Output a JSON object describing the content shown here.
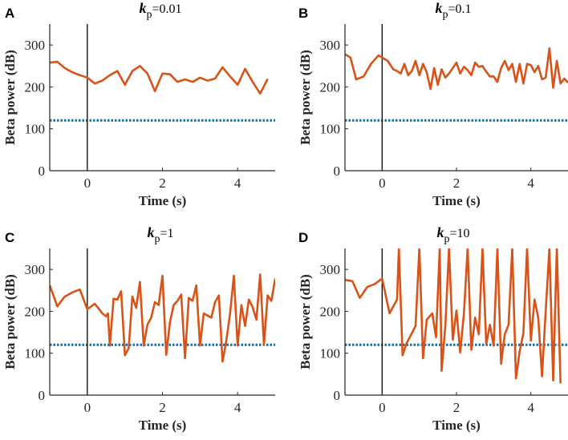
{
  "figure": {
    "colors": {
      "beta_line": "#D95319",
      "threshold_line": "#0072BD",
      "stim_line": "#000000",
      "axis": "#262626"
    }
  },
  "chart_data": [
    {
      "type": "line",
      "panel_letter": "A",
      "title": {
        "symbol": "k",
        "subscript": "p",
        "value": "=0.01"
      },
      "xlabel": "Time (s)",
      "ylabel": "Beta power (dB)",
      "xlim": [
        -1,
        5
      ],
      "ylim": [
        0,
        350
      ],
      "xticks": [
        0,
        2,
        4
      ],
      "xtick_labels": [
        "0",
        "2",
        "4"
      ],
      "yticks": [
        0,
        100,
        200,
        300
      ],
      "ytick_labels": [
        "0",
        "100",
        "200",
        "300"
      ],
      "threshold": 120,
      "stim_onset": 0,
      "series": [
        {
          "name": "Beta power",
          "x": [
            -1,
            -0.8,
            -0.6,
            -0.4,
            -0.2,
            0,
            0.2,
            0.4,
            0.6,
            0.8,
            1.0,
            1.2,
            1.4,
            1.6,
            1.8,
            2.0,
            2.2,
            2.4,
            2.6,
            2.8,
            3.0,
            3.2,
            3.4,
            3.6,
            3.8,
            4.0,
            4.2,
            4.4,
            4.6,
            4.8
          ],
          "y": [
            258,
            260,
            245,
            235,
            228,
            222,
            208,
            215,
            228,
            238,
            205,
            238,
            250,
            232,
            190,
            232,
            230,
            212,
            218,
            212,
            222,
            215,
            220,
            247,
            225,
            205,
            243,
            212,
            184,
            219
          ]
        }
      ]
    },
    {
      "type": "line",
      "panel_letter": "B",
      "title": {
        "symbol": "k",
        "subscript": "p",
        "value": "=0.1"
      },
      "xlabel": "Time (s)",
      "ylabel": "Beta power (dB)",
      "xlim": [
        -1,
        5
      ],
      "ylim": [
        0,
        350
      ],
      "xticks": [
        0,
        2,
        4
      ],
      "xtick_labels": [
        "0",
        "2",
        "4"
      ],
      "yticks": [
        0,
        100,
        200,
        300
      ],
      "ytick_labels": [
        "0",
        "100",
        "200",
        "300"
      ],
      "threshold": 120,
      "stim_onset": 0,
      "series": [
        {
          "name": "Beta power",
          "x": [
            -1,
            -0.85,
            -0.7,
            -0.5,
            -0.3,
            -0.1,
            0,
            0.15,
            0.3,
            0.4,
            0.5,
            0.6,
            0.7,
            0.8,
            0.9,
            1.0,
            1.1,
            1.2,
            1.3,
            1.4,
            1.5,
            1.6,
            1.7,
            1.8,
            1.9,
            2.0,
            2.1,
            2.2,
            2.3,
            2.4,
            2.5,
            2.6,
            2.7,
            2.8,
            2.9,
            3.0,
            3.1,
            3.2,
            3.3,
            3.4,
            3.5,
            3.6,
            3.7,
            3.8,
            3.9,
            4.0,
            4.1,
            4.2,
            4.3,
            4.4,
            4.5,
            4.6,
            4.7,
            4.8,
            4.9,
            5.0
          ],
          "y": [
            278,
            270,
            218,
            225,
            255,
            275,
            270,
            262,
            242,
            238,
            232,
            255,
            228,
            238,
            262,
            228,
            255,
            235,
            195,
            245,
            205,
            242,
            222,
            232,
            245,
            258,
            232,
            248,
            240,
            228,
            258,
            248,
            250,
            236,
            225,
            225,
            212,
            245,
            262,
            240,
            255,
            212,
            255,
            208,
            255,
            252,
            235,
            250,
            218,
            222,
            292,
            198,
            262,
            208,
            220,
            210
          ]
        }
      ]
    },
    {
      "type": "line",
      "panel_letter": "C",
      "title": {
        "symbol": "k",
        "subscript": "p",
        "value": "=1"
      },
      "xlabel": "Time (s)",
      "ylabel": "Beta power (dB)",
      "xlim": [
        -1,
        5
      ],
      "ylim": [
        0,
        350
      ],
      "xticks": [
        0,
        2,
        4
      ],
      "xtick_labels": [
        "0",
        "2",
        "4"
      ],
      "yticks": [
        0,
        100,
        200,
        300
      ],
      "ytick_labels": [
        "0",
        "100",
        "200",
        "300"
      ],
      "threshold": 120,
      "stim_onset": 0,
      "series": [
        {
          "name": "Beta power",
          "x": [
            -1,
            -0.8,
            -0.6,
            -0.4,
            -0.2,
            0,
            0.2,
            0.4,
            0.5,
            0.55,
            0.6,
            0.7,
            0.8,
            0.9,
            1.0,
            1.1,
            1.2,
            1.3,
            1.4,
            1.5,
            1.6,
            1.7,
            1.8,
            1.9,
            2.0,
            2.1,
            2.2,
            2.3,
            2.4,
            2.5,
            2.6,
            2.7,
            2.8,
            2.9,
            3.0,
            3.1,
            3.2,
            3.3,
            3.4,
            3.5,
            3.6,
            3.7,
            3.8,
            3.9,
            4.0,
            4.1,
            4.2,
            4.3,
            4.4,
            4.5,
            4.6,
            4.7,
            4.8,
            4.9,
            5.0
          ],
          "y": [
            262,
            212,
            235,
            245,
            252,
            205,
            218,
            195,
            188,
            195,
            118,
            230,
            228,
            248,
            95,
            112,
            235,
            208,
            270,
            118,
            168,
            185,
            222,
            215,
            285,
            96,
            175,
            215,
            225,
            240,
            88,
            232,
            225,
            262,
            118,
            195,
            190,
            185,
            222,
            238,
            80,
            130,
            195,
            285,
            118,
            215,
            165,
            228,
            210,
            180,
            288,
            120,
            238,
            225,
            278
          ]
        }
      ]
    },
    {
      "type": "line",
      "panel_letter": "D",
      "title": {
        "symbol": "k",
        "subscript": "p",
        "value": "=10"
      },
      "xlabel": "Time (s)",
      "ylabel": "Beta power (dB)",
      "xlim": [
        -1,
        5
      ],
      "ylim": [
        0,
        350
      ],
      "xticks": [
        0,
        2,
        4
      ],
      "xtick_labels": [
        "0",
        "2",
        "4"
      ],
      "yticks": [
        0,
        100,
        200,
        300
      ],
      "ytick_labels": [
        "0",
        "100",
        "200",
        "300"
      ],
      "threshold": 120,
      "stim_onset": 0,
      "series": [
        {
          "name": "Beta power",
          "x": [
            -1,
            -0.8,
            -0.6,
            -0.4,
            -0.2,
            0,
            0.2,
            0.4,
            0.45,
            0.55,
            0.65,
            0.8,
            0.9,
            1.0,
            1.1,
            1.2,
            1.35,
            1.45,
            1.55,
            1.6,
            1.7,
            1.8,
            1.9,
            2.0,
            2.1,
            2.2,
            2.3,
            2.4,
            2.5,
            2.6,
            2.7,
            2.8,
            2.9,
            3.0,
            3.1,
            3.2,
            3.3,
            3.4,
            3.5,
            3.6,
            3.7,
            3.8,
            3.9,
            4.0,
            4.1,
            4.2,
            4.3,
            4.4,
            4.5,
            4.6,
            4.7,
            4.8
          ],
          "y": [
            275,
            272,
            232,
            258,
            265,
            278,
            195,
            228,
            350,
            95,
            122,
            148,
            165,
            350,
            88,
            180,
            195,
            138,
            350,
            58,
            165,
            350,
            132,
            202,
            102,
            195,
            350,
            108,
            185,
            145,
            350,
            122,
            168,
            118,
            350,
            75,
            145,
            168,
            350,
            40,
            105,
            148,
            350,
            130,
            228,
            185,
            45,
            200,
            350,
            35,
            350,
            28
          ]
        }
      ]
    }
  ]
}
